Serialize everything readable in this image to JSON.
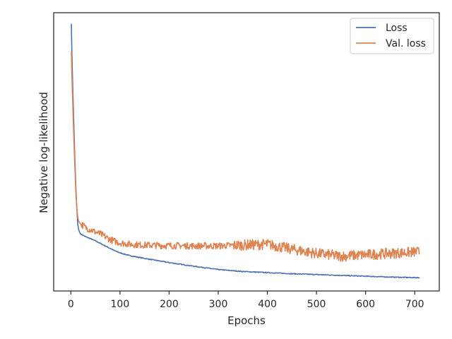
{
  "chart_data": {
    "type": "line",
    "xlabel": "Epochs",
    "ylabel": "Negative log-likelihood",
    "xlim": [
      -35,
      750
    ],
    "ylim": [
      0.0,
      1.0
    ],
    "x_ticks": [
      0,
      100,
      200,
      300,
      400,
      500,
      600,
      700
    ],
    "y_ticks_shown": false,
    "grid": false,
    "legend_position": "top-right",
    "series": [
      {
        "name": "Loss",
        "color": "#4c72b0",
        "x": [
          1,
          2,
          4,
          6,
          8,
          10,
          12,
          14,
          16,
          18,
          20,
          25,
          30,
          40,
          50,
          60,
          70,
          80,
          90,
          100,
          120,
          150,
          200,
          250,
          300,
          350,
          400,
          450,
          500,
          550,
          600,
          650,
          700,
          710
        ],
        "y": [
          0.96,
          0.86,
          0.72,
          0.6,
          0.48,
          0.38,
          0.3,
          0.24,
          0.22,
          0.21,
          0.205,
          0.2,
          0.195,
          0.188,
          0.18,
          0.171,
          0.162,
          0.153,
          0.144,
          0.137,
          0.127,
          0.117,
          0.102,
          0.089,
          0.077,
          0.07,
          0.066,
          0.062,
          0.059,
          0.056,
          0.053,
          0.05,
          0.048,
          0.048
        ]
      },
      {
        "name": "Val. loss",
        "color": "#dd8452",
        "x": [
          1,
          2,
          4,
          6,
          8,
          10,
          12,
          14,
          16,
          18,
          20,
          25,
          30,
          40,
          50,
          60,
          70,
          80,
          90,
          100,
          120,
          150,
          200,
          250,
          300,
          350,
          400,
          450,
          500,
          550,
          600,
          650,
          700,
          710
        ],
        "y": [
          0.86,
          0.78,
          0.66,
          0.55,
          0.45,
          0.36,
          0.3,
          0.265,
          0.25,
          0.245,
          0.24,
          0.235,
          0.228,
          0.22,
          0.212,
          0.205,
          0.195,
          0.185,
          0.178,
          0.173,
          0.168,
          0.165,
          0.163,
          0.162,
          0.162,
          0.165,
          0.168,
          0.15,
          0.135,
          0.125,
          0.13,
          0.135,
          0.14,
          0.14
        ],
        "noise_amplitude": 0.012
      }
    ]
  }
}
